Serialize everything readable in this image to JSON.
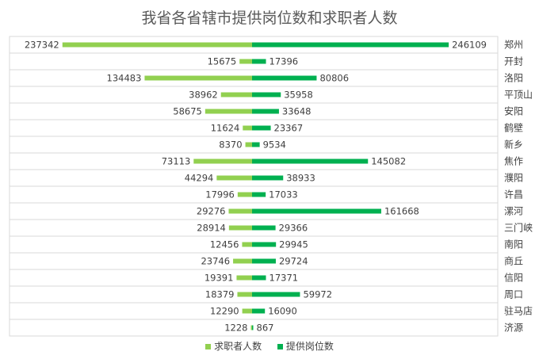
{
  "chart_data": {
    "type": "bar",
    "orientation": "horizontal-diverging",
    "title": "我省各省辖市提供岗位数和求职者人数",
    "categories": [
      "郑州",
      "开封",
      "洛阳",
      "平顶山",
      "安阳",
      "鹤壁",
      "新乡",
      "焦作",
      "濮阳",
      "许昌",
      "漯河",
      "三门峡",
      "南阳",
      "商丘",
      "信阳",
      "周口",
      "驻马店",
      "济源"
    ],
    "series": [
      {
        "name": "求职者人数",
        "color": "#92d050",
        "values": [
          237342,
          15675,
          134483,
          38962,
          58675,
          11624,
          8370,
          73113,
          44294,
          17996,
          29276,
          28914,
          12456,
          23746,
          19391,
          18379,
          12290,
          1228
        ]
      },
      {
        "name": "提供岗位数",
        "color": "#00b050",
        "values": [
          246109,
          17396,
          80806,
          35958,
          33648,
          23367,
          9534,
          145082,
          38933,
          17033,
          161668,
          29366,
          29945,
          29724,
          17371,
          59972,
          16090,
          867
        ]
      }
    ],
    "legend_position": "bottom",
    "grid": true
  }
}
